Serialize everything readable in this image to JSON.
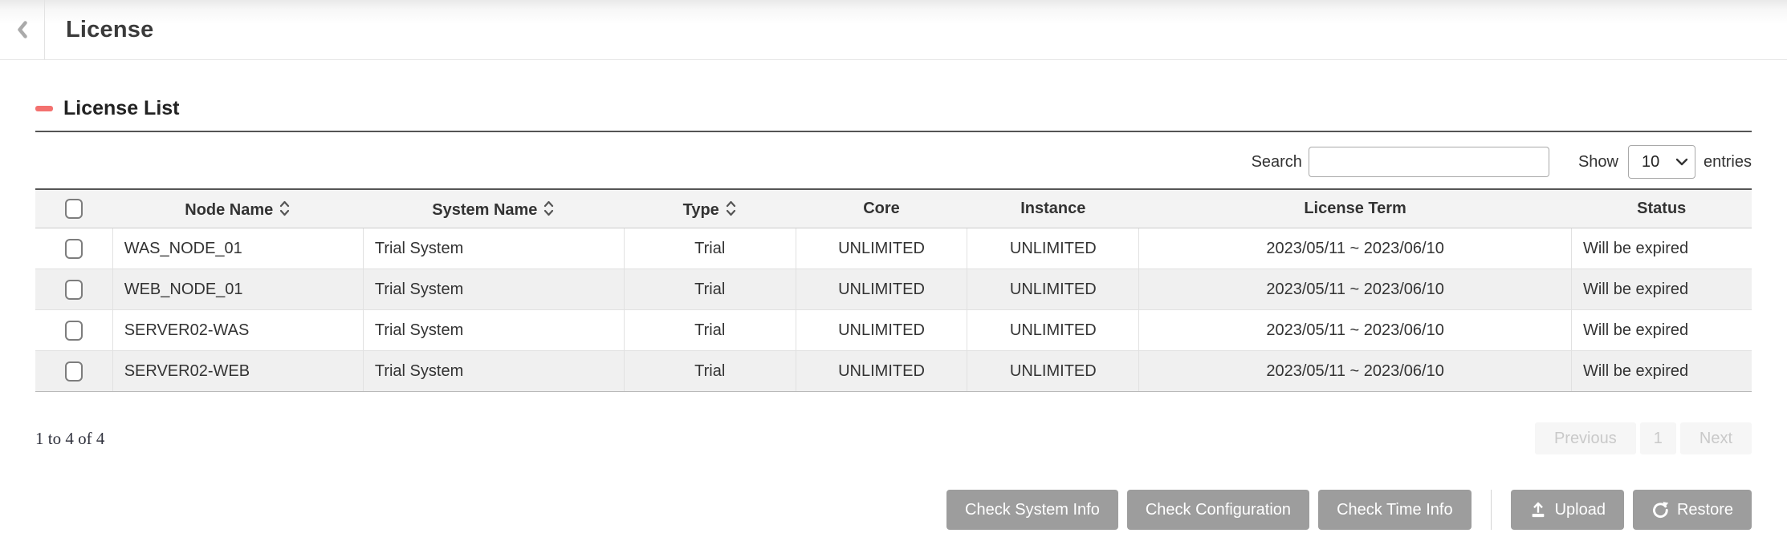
{
  "colors": {
    "accent_red": "#f3716f",
    "button_gray": "#9d9d9d"
  },
  "icons": {
    "back": "chevron-left",
    "sort": "sort-up-down-chevrons",
    "select": "chevron-down",
    "upload": "upload-arrow-tray",
    "restore": "redo-circular-arrow"
  },
  "header": {
    "title": "License"
  },
  "section": {
    "title": "License List"
  },
  "controls": {
    "search_label": "Search",
    "search_value": "",
    "show_label": "Show",
    "show_value": "10",
    "entries_label": "entries"
  },
  "table": {
    "columns": [
      {
        "label": "",
        "sortable": false
      },
      {
        "label": "Node Name",
        "sortable": true
      },
      {
        "label": "System Name",
        "sortable": true
      },
      {
        "label": "Type",
        "sortable": true
      },
      {
        "label": "Core",
        "sortable": false
      },
      {
        "label": "Instance",
        "sortable": false
      },
      {
        "label": "License Term",
        "sortable": false
      },
      {
        "label": "Status",
        "sortable": false
      }
    ],
    "rows": [
      {
        "node_name": "WAS_NODE_01",
        "system_name": "Trial System",
        "type": "Trial",
        "core": "UNLIMITED",
        "instance": "UNLIMITED",
        "license_term": "2023/05/11 ~ 2023/06/10",
        "status": "Will be expired"
      },
      {
        "node_name": "WEB_NODE_01",
        "system_name": "Trial System",
        "type": "Trial",
        "core": "UNLIMITED",
        "instance": "UNLIMITED",
        "license_term": "2023/05/11 ~ 2023/06/10",
        "status": "Will be expired"
      },
      {
        "node_name": "SERVER02-WAS",
        "system_name": "Trial System",
        "type": "Trial",
        "core": "UNLIMITED",
        "instance": "UNLIMITED",
        "license_term": "2023/05/11 ~ 2023/06/10",
        "status": "Will be expired"
      },
      {
        "node_name": "SERVER02-WEB",
        "system_name": "Trial System",
        "type": "Trial",
        "core": "UNLIMITED",
        "instance": "UNLIMITED",
        "license_term": "2023/05/11 ~ 2023/06/10",
        "status": "Will be expired"
      }
    ]
  },
  "pagination": {
    "info": "1 to 4 of 4",
    "previous_label": "Previous",
    "page": "1",
    "next_label": "Next"
  },
  "actions": {
    "check_system_info": "Check System Info",
    "check_configuration": "Check Configuration",
    "check_time_info": "Check Time Info",
    "upload": "Upload",
    "restore": "Restore"
  }
}
